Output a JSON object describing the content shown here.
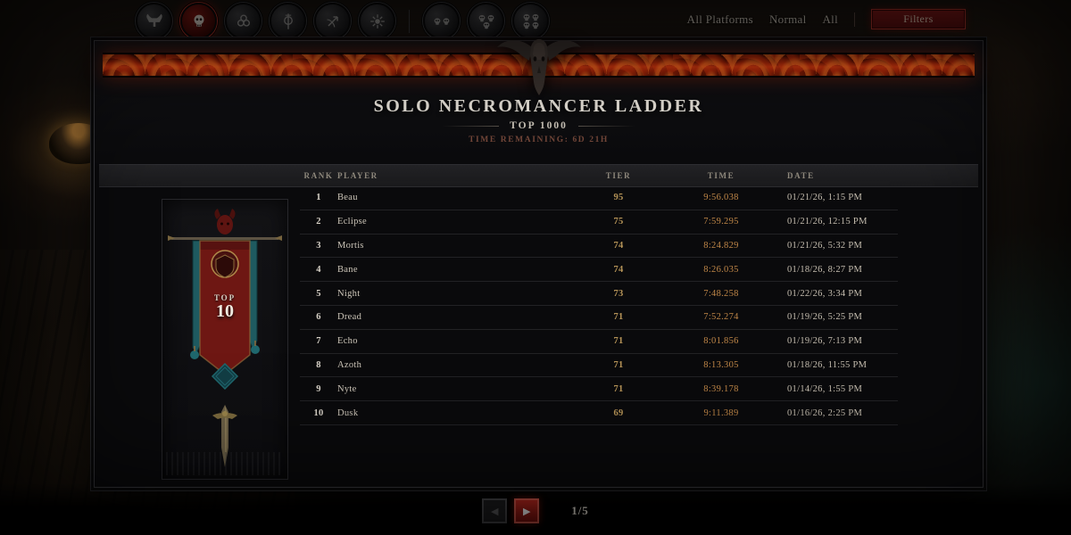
{
  "topbar": {
    "class_filters": [
      {
        "name": "barbarian",
        "icon": "barbarian-class-icon",
        "selected": false
      },
      {
        "name": "necromancer",
        "icon": "necromancer-class-icon",
        "selected": true
      },
      {
        "name": "druid",
        "icon": "druid-class-icon",
        "selected": false
      },
      {
        "name": "sorcerer",
        "icon": "sorcerer-class-icon",
        "selected": false
      },
      {
        "name": "rogue",
        "icon": "rogue-class-icon",
        "selected": false
      },
      {
        "name": "spiritborn",
        "icon": "spiritborn-class-icon",
        "selected": false
      }
    ],
    "party_filters": [
      {
        "name": "party-2",
        "icon": "two-skulls-icon",
        "size": 2
      },
      {
        "name": "party-3",
        "icon": "three-skulls-icon",
        "size": 3
      },
      {
        "name": "party-4",
        "icon": "four-skulls-icon",
        "size": 4
      }
    ],
    "platform_label": "All Platforms",
    "mode_label": "Normal",
    "scope_label": "All",
    "filters_button_label": "Filters"
  },
  "header": {
    "title": "SOLO NECROMANCER LADDER",
    "subtitle": "TOP 1000",
    "time_remaining": "TIME REMAINING: 6D 21H"
  },
  "rank_banner": {
    "line1": "TOP",
    "line2": "10"
  },
  "table": {
    "columns": [
      "RANK",
      "PLAYER",
      "TIER",
      "TIME",
      "DATE"
    ],
    "rows": [
      {
        "rank": "1",
        "player": "Beau",
        "tier": "95",
        "time": "9:56.038",
        "date": "01/21/26, 1:15 PM"
      },
      {
        "rank": "2",
        "player": "Eclipse",
        "tier": "75",
        "time": "7:59.295",
        "date": "01/21/26, 12:15 PM"
      },
      {
        "rank": "3",
        "player": "Mortis",
        "tier": "74",
        "time": "8:24.829",
        "date": "01/21/26, 5:32 PM"
      },
      {
        "rank": "4",
        "player": "Bane",
        "tier": "74",
        "time": "8:26.035",
        "date": "01/18/26, 8:27 PM"
      },
      {
        "rank": "5",
        "player": "Night",
        "tier": "73",
        "time": "7:48.258",
        "date": "01/22/26, 3:34 PM"
      },
      {
        "rank": "6",
        "player": "Dread",
        "tier": "71",
        "time": "7:52.274",
        "date": "01/19/26, 5:25 PM"
      },
      {
        "rank": "7",
        "player": "Echo",
        "tier": "71",
        "time": "8:01.856",
        "date": "01/19/26, 7:13 PM"
      },
      {
        "rank": "8",
        "player": "Azoth",
        "tier": "71",
        "time": "8:13.305",
        "date": "01/18/26, 11:55 PM"
      },
      {
        "rank": "9",
        "player": "Nyte",
        "tier": "71",
        "time": "8:39.178",
        "date": "01/14/26, 1:55 PM"
      },
      {
        "rank": "10",
        "player": "Dusk",
        "tier": "69",
        "time": "9:11.389",
        "date": "01/16/26, 2:25 PM"
      }
    ]
  },
  "pagination": {
    "prev_icon": "◀",
    "next_icon": "▶",
    "count": "1/5"
  },
  "colors": {
    "accent_red": "#a91e1c",
    "tier_gold": "#b69458",
    "time_gold": "#c08748",
    "ember": "#c33410"
  }
}
